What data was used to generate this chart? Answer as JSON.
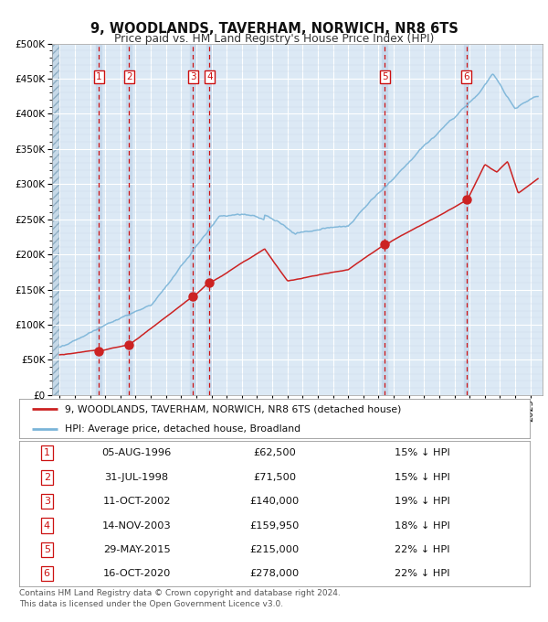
{
  "title": "9, WOODLANDS, TAVERHAM, NORWICH, NR8 6TS",
  "subtitle": "Price paid vs. HM Land Registry's House Price Index (HPI)",
  "background_color": "#ffffff",
  "plot_bg_color": "#dce9f5",
  "hpi_color": "#7ab4d8",
  "price_color": "#cc2222",
  "sales": [
    {
      "label": "1",
      "date_year": 1996.58,
      "price": 62500
    },
    {
      "label": "2",
      "date_year": 1998.58,
      "price": 71500
    },
    {
      "label": "3",
      "date_year": 2002.77,
      "price": 140000
    },
    {
      "label": "4",
      "date_year": 2003.87,
      "price": 159950
    },
    {
      "label": "5",
      "date_year": 2015.41,
      "price": 215000
    },
    {
      "label": "6",
      "date_year": 2020.79,
      "price": 278000
    }
  ],
  "legend_line1": "9, WOODLANDS, TAVERHAM, NORWICH, NR8 6TS (detached house)",
  "legend_line2": "HPI: Average price, detached house, Broadland",
  "table_rows": [
    [
      "1",
      "05-AUG-1996",
      "£62,500",
      "15% ↓ HPI"
    ],
    [
      "2",
      "31-JUL-1998",
      "£71,500",
      "15% ↓ HPI"
    ],
    [
      "3",
      "11-OCT-2002",
      "£140,000",
      "19% ↓ HPI"
    ],
    [
      "4",
      "14-NOV-2003",
      "£159,950",
      "18% ↓ HPI"
    ],
    [
      "5",
      "29-MAY-2015",
      "£215,000",
      "22% ↓ HPI"
    ],
    [
      "6",
      "16-OCT-2020",
      "£278,000",
      "22% ↓ HPI"
    ]
  ],
  "footer": "Contains HM Land Registry data © Crown copyright and database right 2024.\nThis data is licensed under the Open Government Licence v3.0.",
  "ylim": [
    0,
    500000
  ],
  "xlim_start": 1993.5,
  "xlim_end": 2025.8
}
